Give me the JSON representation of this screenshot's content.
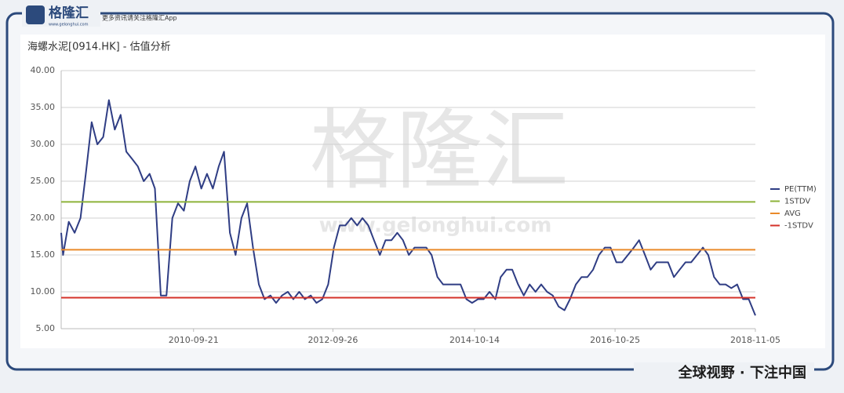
{
  "branding": {
    "logo": "格隆汇",
    "slogan": "更多资讯请关注格隆汇App",
    "site": "www.gelonghui.com",
    "footer": "全球视野 · 下注中国",
    "watermark": "格隆汇",
    "watermark_url": "www.gelonghui.com"
  },
  "chart_data": {
    "type": "line",
    "title": "海螺水泥[0914.HK] - 估值分析",
    "x": [
      "2008-10-22",
      "2008-11-01",
      "2008-12-01",
      "2009-01-01",
      "2009-02-01",
      "2009-03-01",
      "2009-04-01",
      "2009-05-01",
      "2009-06-01",
      "2009-07-01",
      "2009-08-01",
      "2009-09-01",
      "2009-10-01",
      "2009-11-01",
      "2009-12-01",
      "2010-01-01",
      "2010-02-01",
      "2010-03-01",
      "2010-04-01",
      "2010-05-01",
      "2010-06-01",
      "2010-07-01",
      "2010-08-01",
      "2010-09-01",
      "2010-10-01",
      "2010-11-01",
      "2010-12-01",
      "2011-01-01",
      "2011-02-01",
      "2011-03-01",
      "2011-04-01",
      "2011-05-01",
      "2011-06-01",
      "2011-07-01",
      "2011-08-01",
      "2011-09-01",
      "2011-10-01",
      "2011-11-01",
      "2011-12-01",
      "2012-01-01",
      "2012-02-01",
      "2012-03-01",
      "2012-04-01",
      "2012-05-01",
      "2012-06-01",
      "2012-07-01",
      "2012-08-01",
      "2012-09-01",
      "2012-10-01",
      "2012-11-01",
      "2012-12-01",
      "2013-01-01",
      "2013-02-01",
      "2013-03-01",
      "2013-04-01",
      "2013-05-01",
      "2013-06-01",
      "2013-07-01",
      "2013-08-01",
      "2013-09-01",
      "2013-10-01",
      "2013-11-01",
      "2013-12-01",
      "2014-01-01",
      "2014-02-01",
      "2014-03-01",
      "2014-04-01",
      "2014-05-01",
      "2014-06-01",
      "2014-07-01",
      "2014-08-01",
      "2014-09-01",
      "2014-10-01",
      "2014-11-01",
      "2014-12-01",
      "2015-01-01",
      "2015-02-01",
      "2015-03-01",
      "2015-04-01",
      "2015-05-01",
      "2015-06-01",
      "2015-07-01",
      "2015-08-01",
      "2015-09-01",
      "2015-10-01",
      "2015-11-01",
      "2015-12-01",
      "2016-01-01",
      "2016-02-01",
      "2016-03-01",
      "2016-04-01",
      "2016-05-01",
      "2016-06-01",
      "2016-07-01",
      "2016-08-01",
      "2016-09-01",
      "2016-10-01",
      "2016-11-01",
      "2016-12-01",
      "2017-01-01",
      "2017-02-01",
      "2017-03-01",
      "2017-04-01",
      "2017-05-01",
      "2017-06-01",
      "2017-07-01",
      "2017-08-01",
      "2017-09-01",
      "2017-10-01",
      "2017-11-01",
      "2017-12-01",
      "2018-01-01",
      "2018-02-01",
      "2018-03-01",
      "2018-04-01",
      "2018-05-01",
      "2018-06-01",
      "2018-07-01",
      "2018-08-01",
      "2018-09-01",
      "2018-10-01",
      "2018-11-05"
    ],
    "series": [
      {
        "name": "PE(TTM)",
        "color": "#2f3d84",
        "values": [
          18,
          15,
          19.5,
          18,
          20,
          26,
          33,
          30,
          31,
          36,
          32,
          34,
          29,
          28,
          27,
          25,
          26,
          24,
          9.5,
          9.5,
          20,
          22,
          21,
          25,
          27,
          24,
          26,
          24,
          27,
          29,
          18,
          15,
          20,
          22,
          16,
          11,
          9,
          9.5,
          8.5,
          9.5,
          10,
          9,
          10,
          9,
          9.5,
          8.5,
          9,
          11,
          16,
          19,
          19,
          20,
          19,
          20,
          19,
          17,
          15,
          17,
          17,
          18,
          17,
          15,
          16,
          16,
          16,
          15,
          12,
          11,
          11,
          11,
          11,
          9,
          8.5,
          9,
          9,
          10,
          9,
          12,
          13,
          13,
          11,
          9.5,
          11,
          10,
          11,
          10,
          9.5,
          8,
          7.5,
          9,
          11,
          12,
          12,
          13,
          15,
          16,
          16,
          14,
          14,
          15,
          16,
          17,
          15,
          13,
          14,
          14,
          14,
          12,
          13,
          14,
          14,
          15,
          16,
          15,
          12,
          11,
          11,
          10.5,
          11,
          9,
          9,
          6.8
        ]
      }
    ],
    "reference_lines": [
      {
        "name": "1STDV",
        "color": "#8db33a",
        "value": 22.2
      },
      {
        "name": "AVG",
        "color": "#ea8a2a",
        "value": 15.7
      },
      {
        "name": "-1STDV",
        "color": "#d4322a",
        "value": 9.2
      }
    ],
    "xlim": [
      "2008-10-22",
      "2018-11-05"
    ],
    "xticks": [
      "2010-09-21",
      "2012-09-26",
      "2014-10-14",
      "2016-10-25",
      "2018-11-05"
    ],
    "ylim": [
      5,
      40
    ],
    "yticks": [
      {
        "value": 5,
        "label": "5.00"
      },
      {
        "value": 10,
        "label": "10.00"
      },
      {
        "value": 15,
        "label": "15.00"
      },
      {
        "value": 20,
        "label": "20.00"
      },
      {
        "value": 25,
        "label": "25.00"
      },
      {
        "value": 30,
        "label": "30.00"
      },
      {
        "value": 35,
        "label": "35.00"
      },
      {
        "value": 40,
        "label": "40.00"
      }
    ],
    "grid": true,
    "legend": "right"
  }
}
